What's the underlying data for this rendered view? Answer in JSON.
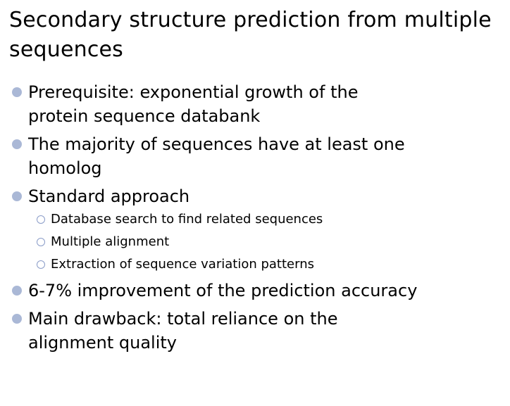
{
  "slide": {
    "title": "Secondary structure prediction from multiple sequences",
    "bullets": [
      {
        "text": "Prerequisite: exponential growth of the protein sequence databank"
      },
      {
        "text": "The majority of sequences have at least one homolog"
      },
      {
        "text": "Standard approach",
        "sub": [
          "Database search to find related sequences",
          "Multiple alignment",
          "Extraction of sequence variation patterns"
        ]
      },
      {
        "text": "6-7% improvement of the prediction accuracy"
      },
      {
        "text": "Main drawback: total reliance on the alignment quality"
      }
    ],
    "colors": {
      "bullet_fill": "#aab8d6",
      "sub_bullet_ring": "#8a9cc8"
    },
    "icons": {
      "level1": "filled-circle-bullet-icon",
      "level2": "hollow-circle-bullet-icon"
    }
  }
}
